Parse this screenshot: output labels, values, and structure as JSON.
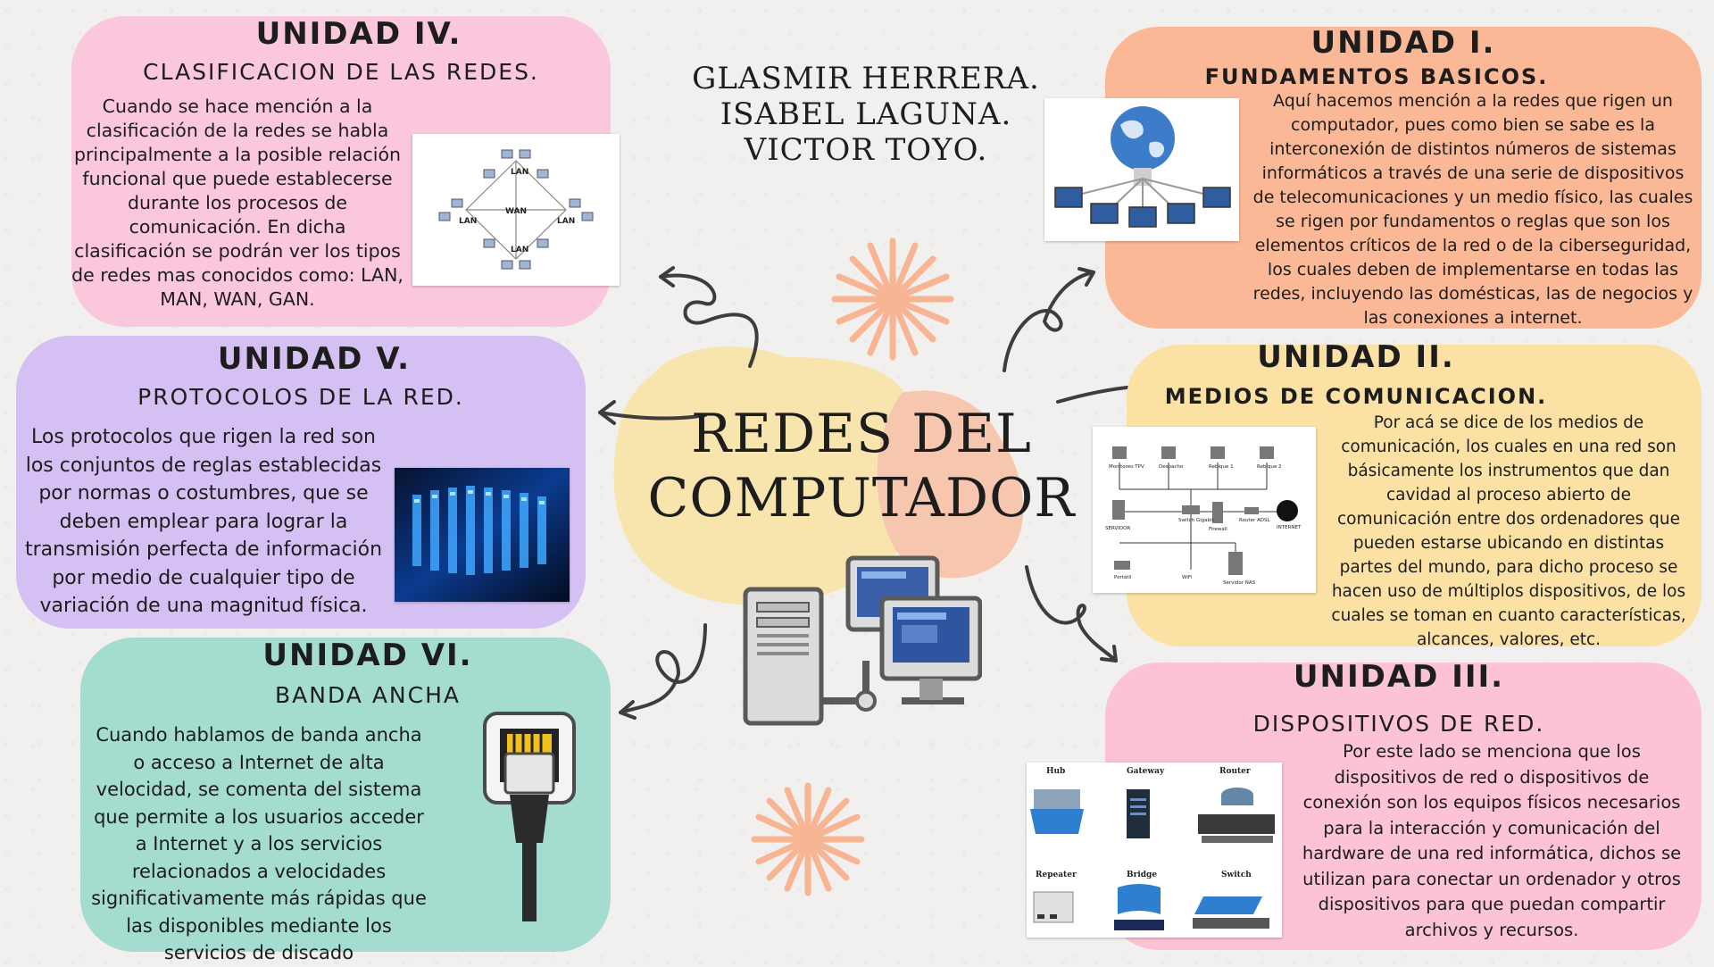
{
  "names": [
    "GLASMIR HERRERA.",
    "ISABEL LAGUNA.",
    "VICTOR TOYO."
  ],
  "title": [
    "REDES DEL",
    "COMPUTADOR"
  ],
  "units": {
    "u1": {
      "heading": "UNIDAD I.",
      "subtitle": "FUNDAMENTOS BASICOS.",
      "text": "Aquí hacemos mención a la redes que rigen un computador, pues como bien se sabe es la interconexión de distintos números de sistemas informáticos a través de una serie de dispositivos de telecomunicaciones y un medio físico, las cuales se rigen por fundamentos o reglas que son los elementos críticos de la red o de la ciberseguridad, los cuales deben de implementarse en todas las redes, incluyendo las domésticas, las de negocios y las conexiones a internet.",
      "color": "#fbb896"
    },
    "u2": {
      "heading": "UNIDAD II.",
      "subtitle": "MEDIOS DE COMUNICACION.",
      "text": "Por acá se dice de los medios de comunicación, los cuales  en una red son básicamente los instrumentos que dan cavidad al proceso abierto de comunicación entre dos ordenadores que pueden estarse ubicando en distintas partes del mundo, para dicho proceso se hacen uso de múltiplos dispositivos, de los cuales se toman en cuanto características, alcances, valores, etc.",
      "color": "#fbe1a4",
      "diagram_labels": [
        "Monitoreo TPV",
        "Despacho",
        "Rebique 1",
        "Rebique 2",
        "SERVIDOR",
        "Switch Gigabit",
        "Firewall",
        "Router ADSL",
        "INTERNET",
        "Portátil",
        "WiFi",
        "Servidor NAS"
      ]
    },
    "u3": {
      "heading": "UNIDAD III.",
      "subtitle": "DISPOSITIVOS DE RED.",
      "text": "Por este lado se menciona que los dispositivos de red o dispositivos de conexión son los equipos físicos necesarios para la interacción y comunicación del hardware de una red informática, dichos se utilizan para conectar un ordenador y otros dispositivos para que puedan compartir archivos y recursos.",
      "color": "#fbc3d4",
      "devices": [
        "Hub",
        "Gateway",
        "Router",
        "Repeater",
        "Bridge",
        "Switch"
      ]
    },
    "u4": {
      "heading": "UNIDAD IV.",
      "subtitle": "CLASIFICACION DE LAS REDES.",
      "text": "Cuando se hace mención a la clasificación de la redes se habla principalmente a la posible relación funcional que puede establecerse durante los procesos de comunicación. En dicha clasificación se podrán ver los tipos de redes mas conocidos como: LAN, MAN, WAN, GAN.",
      "color": "#fbc7dc",
      "diagram_labels": [
        "LAN",
        "LAN",
        "WAN",
        "LAN",
        "LAN"
      ]
    },
    "u5": {
      "heading": "UNIDAD V.",
      "subtitle": "PROTOCOLOS DE LA RED.",
      "text": "Los protocolos que rigen la red son los conjuntos de reglas establecidas por normas o costumbres, que se deben emplear para lograr la transmisión perfecta de información por medio de cualquier tipo de variación de una magnitud física.",
      "color": "#d4c0f3"
    },
    "u6": {
      "heading": "UNIDAD VI.",
      "subtitle": "BANDA ANCHA",
      "text": "Cuando hablamos de banda ancha o acceso a Internet de alta velocidad, se comenta del sistema que permite a los usuarios acceder a Internet y a los servicios relacionados a velocidades significativamente más rápidas que las disponibles mediante los servicios de discado",
      "color": "#a4ddcf"
    }
  },
  "accent_colors": {
    "blob_yellow": "#f8e4ad",
    "blob_peach": "#f7c6ae",
    "starburst": "#f7b593",
    "arrows": "#3d3d3d"
  }
}
